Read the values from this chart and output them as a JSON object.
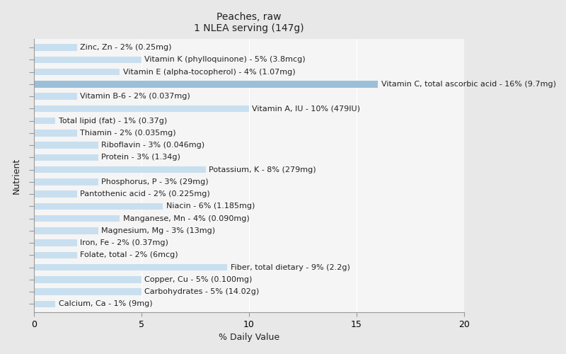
{
  "title": "Peaches, raw\n1 NLEA serving (147g)",
  "xlabel": "% Daily Value",
  "ylabel": "Nutrient",
  "fig_bg_color": "#e8e8e8",
  "plot_bg_color": "#f5f5f5",
  "nutrients": [
    "Calcium, Ca - 1% (9mg)",
    "Carbohydrates - 5% (14.02g)",
    "Copper, Cu - 5% (0.100mg)",
    "Fiber, total dietary - 9% (2.2g)",
    "Folate, total - 2% (6mcg)",
    "Iron, Fe - 2% (0.37mg)",
    "Magnesium, Mg - 3% (13mg)",
    "Manganese, Mn - 4% (0.090mg)",
    "Niacin - 6% (1.185mg)",
    "Pantothenic acid - 2% (0.225mg)",
    "Phosphorus, P - 3% (29mg)",
    "Potassium, K - 8% (279mg)",
    "Protein - 3% (1.34g)",
    "Riboflavin - 3% (0.046mg)",
    "Thiamin - 2% (0.035mg)",
    "Total lipid (fat) - 1% (0.37g)",
    "Vitamin A, IU - 10% (479IU)",
    "Vitamin B-6 - 2% (0.037mg)",
    "Vitamin C, total ascorbic acid - 16% (9.7mg)",
    "Vitamin E (alpha-tocopherol) - 4% (1.07mg)",
    "Vitamin K (phylloquinone) - 5% (3.8mcg)",
    "Zinc, Zn - 2% (0.25mg)"
  ],
  "values": [
    1,
    5,
    5,
    9,
    2,
    2,
    3,
    4,
    6,
    2,
    3,
    8,
    3,
    3,
    2,
    1,
    10,
    2,
    16,
    4,
    5,
    2
  ],
  "bar_color_normal": "#c8dff0",
  "bar_color_highlight": "#9bbfd8",
  "highlight_index": 18,
  "xlim": [
    0,
    20
  ],
  "xticks": [
    0,
    5,
    10,
    15,
    20
  ],
  "title_fontsize": 10,
  "axis_label_fontsize": 9,
  "tick_fontsize": 9,
  "bar_label_fontsize": 8,
  "bar_height": 0.55,
  "grid_color": "#ffffff",
  "spine_color": "#999999",
  "text_color": "#222222"
}
